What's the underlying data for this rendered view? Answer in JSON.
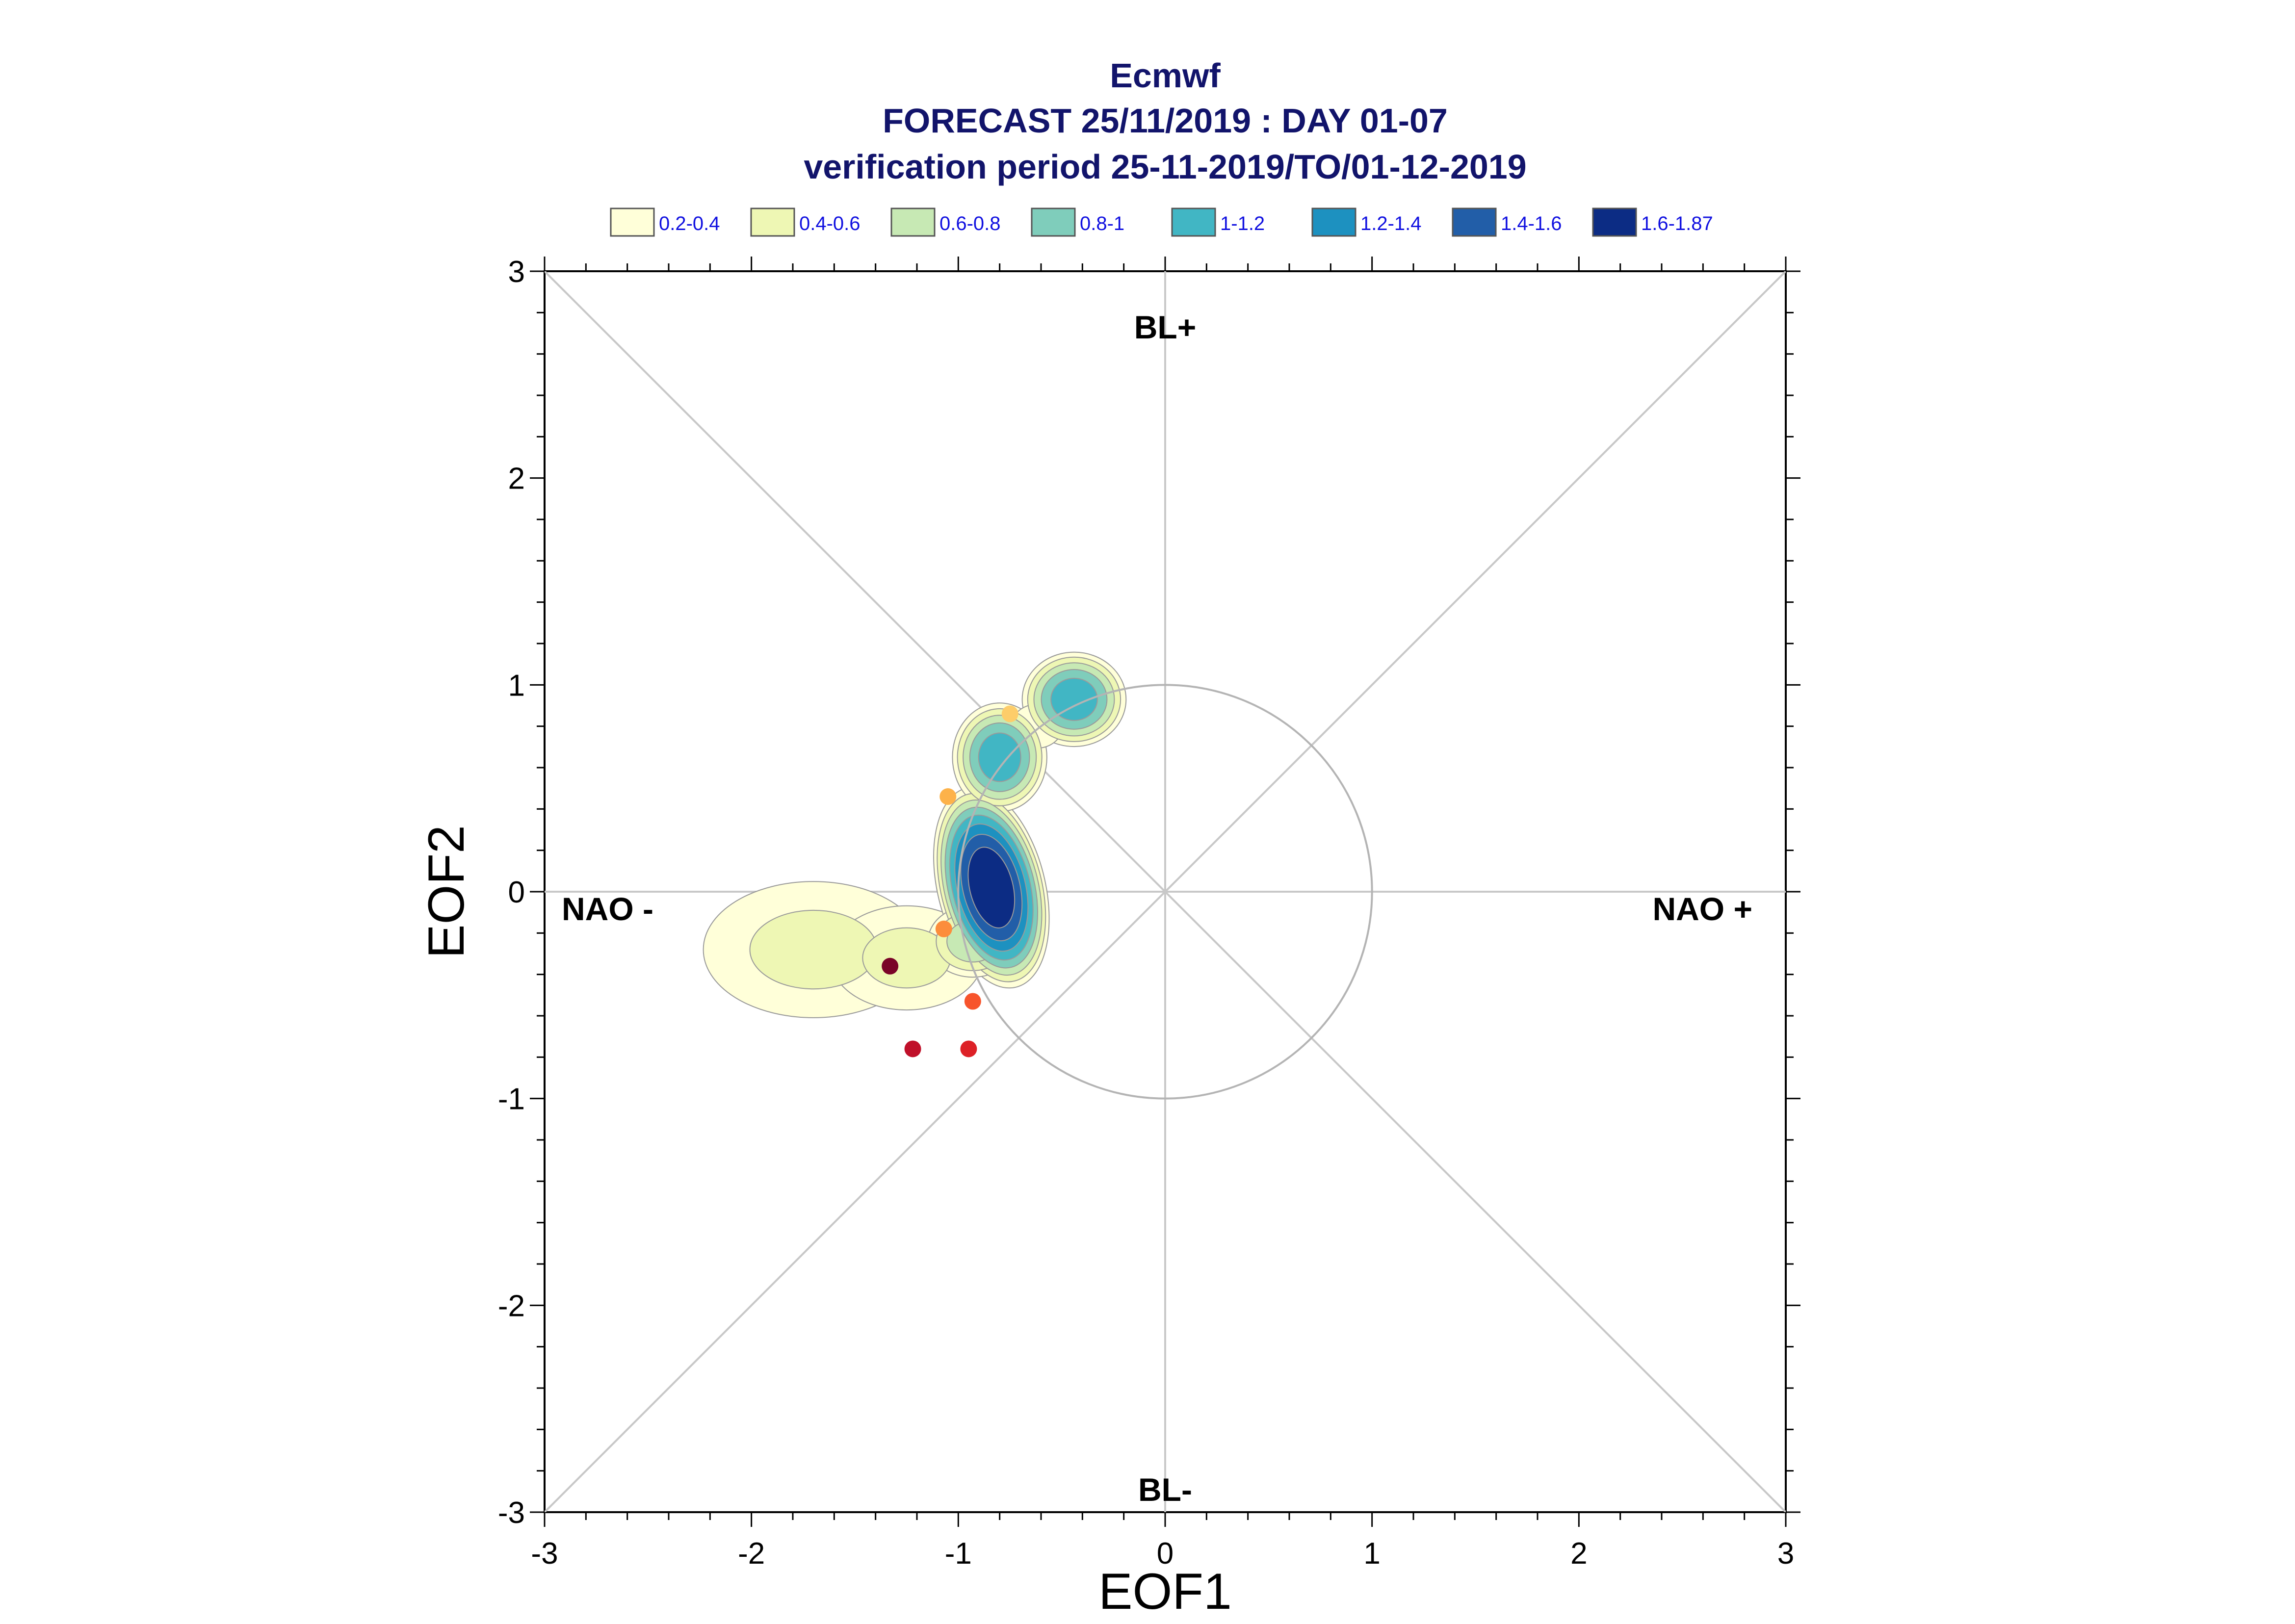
{
  "chart_data": {
    "type": "scatter",
    "title_lines": [
      "Ecmwf",
      "FORECAST 25/11/2019 : DAY 01-07",
      "verification period 25-11-2019/TO/01-12-2019"
    ],
    "xlabel": "EOF1",
    "ylabel": "EOF2",
    "xlim": [
      -3,
      3
    ],
    "ylim": [
      -3,
      3
    ],
    "xticks": [
      "-3",
      "-2",
      "-1",
      "0",
      "1",
      "2",
      "3"
    ],
    "yticks": [
      "-3",
      "-2",
      "-1",
      "0",
      "1",
      "2",
      "3"
    ],
    "region_labels": {
      "top": "BL+",
      "bottom": "BL-",
      "left": "NAO -",
      "right": "NAO +"
    },
    "unit_circle_radius": 1,
    "legend": [
      {
        "label": "0.2-0.4",
        "color": "#ffffd9"
      },
      {
        "label": "0.4-0.6",
        "color": "#eef7b4"
      },
      {
        "label": "0.6-0.8",
        "color": "#c7e9b4"
      },
      {
        "label": "0.8-1",
        "color": "#7fcdbb"
      },
      {
        "label": "1-1.2",
        "color": "#41b6c4"
      },
      {
        "label": "1.2-1.4",
        "color": "#1d91c0"
      },
      {
        "label": "1.4-1.6",
        "color": "#225ea8"
      },
      {
        "label": "1.6-1.87",
        "color": "#0c2c84"
      }
    ],
    "density_blobs": [
      {
        "cx": -1.7,
        "cy": -0.28,
        "rx": 0.55,
        "ry": 0.34,
        "peak": 0.5
      },
      {
        "cx": -1.25,
        "cy": -0.32,
        "rx": 0.38,
        "ry": 0.26,
        "peak": 0.5
      },
      {
        "cx": -0.84,
        "cy": 0.02,
        "rx": 0.22,
        "ry": 0.42,
        "peak": 1.87,
        "angle": -14
      },
      {
        "cx": -0.93,
        "cy": -0.24,
        "rx": 0.2,
        "ry": 0.16,
        "peak": 0.8
      },
      {
        "cx": -0.8,
        "cy": 0.65,
        "rx": 0.2,
        "ry": 0.23,
        "peak": 1.2
      },
      {
        "cx": -0.44,
        "cy": 0.93,
        "rx": 0.22,
        "ry": 0.2,
        "peak": 1.2
      },
      {
        "cx": -0.62,
        "cy": 0.8,
        "rx": 0.14,
        "ry": 0.12,
        "peak": 0.4
      }
    ],
    "points": [
      {
        "x": -0.75,
        "y": 0.86,
        "color": "#fdcd6a"
      },
      {
        "x": -1.05,
        "y": 0.46,
        "color": "#fdb24a"
      },
      {
        "x": -1.07,
        "y": -0.18,
        "color": "#fc8d3c"
      },
      {
        "x": -0.93,
        "y": -0.53,
        "color": "#f7542c"
      },
      {
        "x": -1.33,
        "y": -0.36,
        "color": "#7a0428"
      },
      {
        "x": -1.22,
        "y": -0.76,
        "color": "#c0102a"
      },
      {
        "x": -0.95,
        "y": -0.76,
        "color": "#dd2127"
      }
    ]
  }
}
